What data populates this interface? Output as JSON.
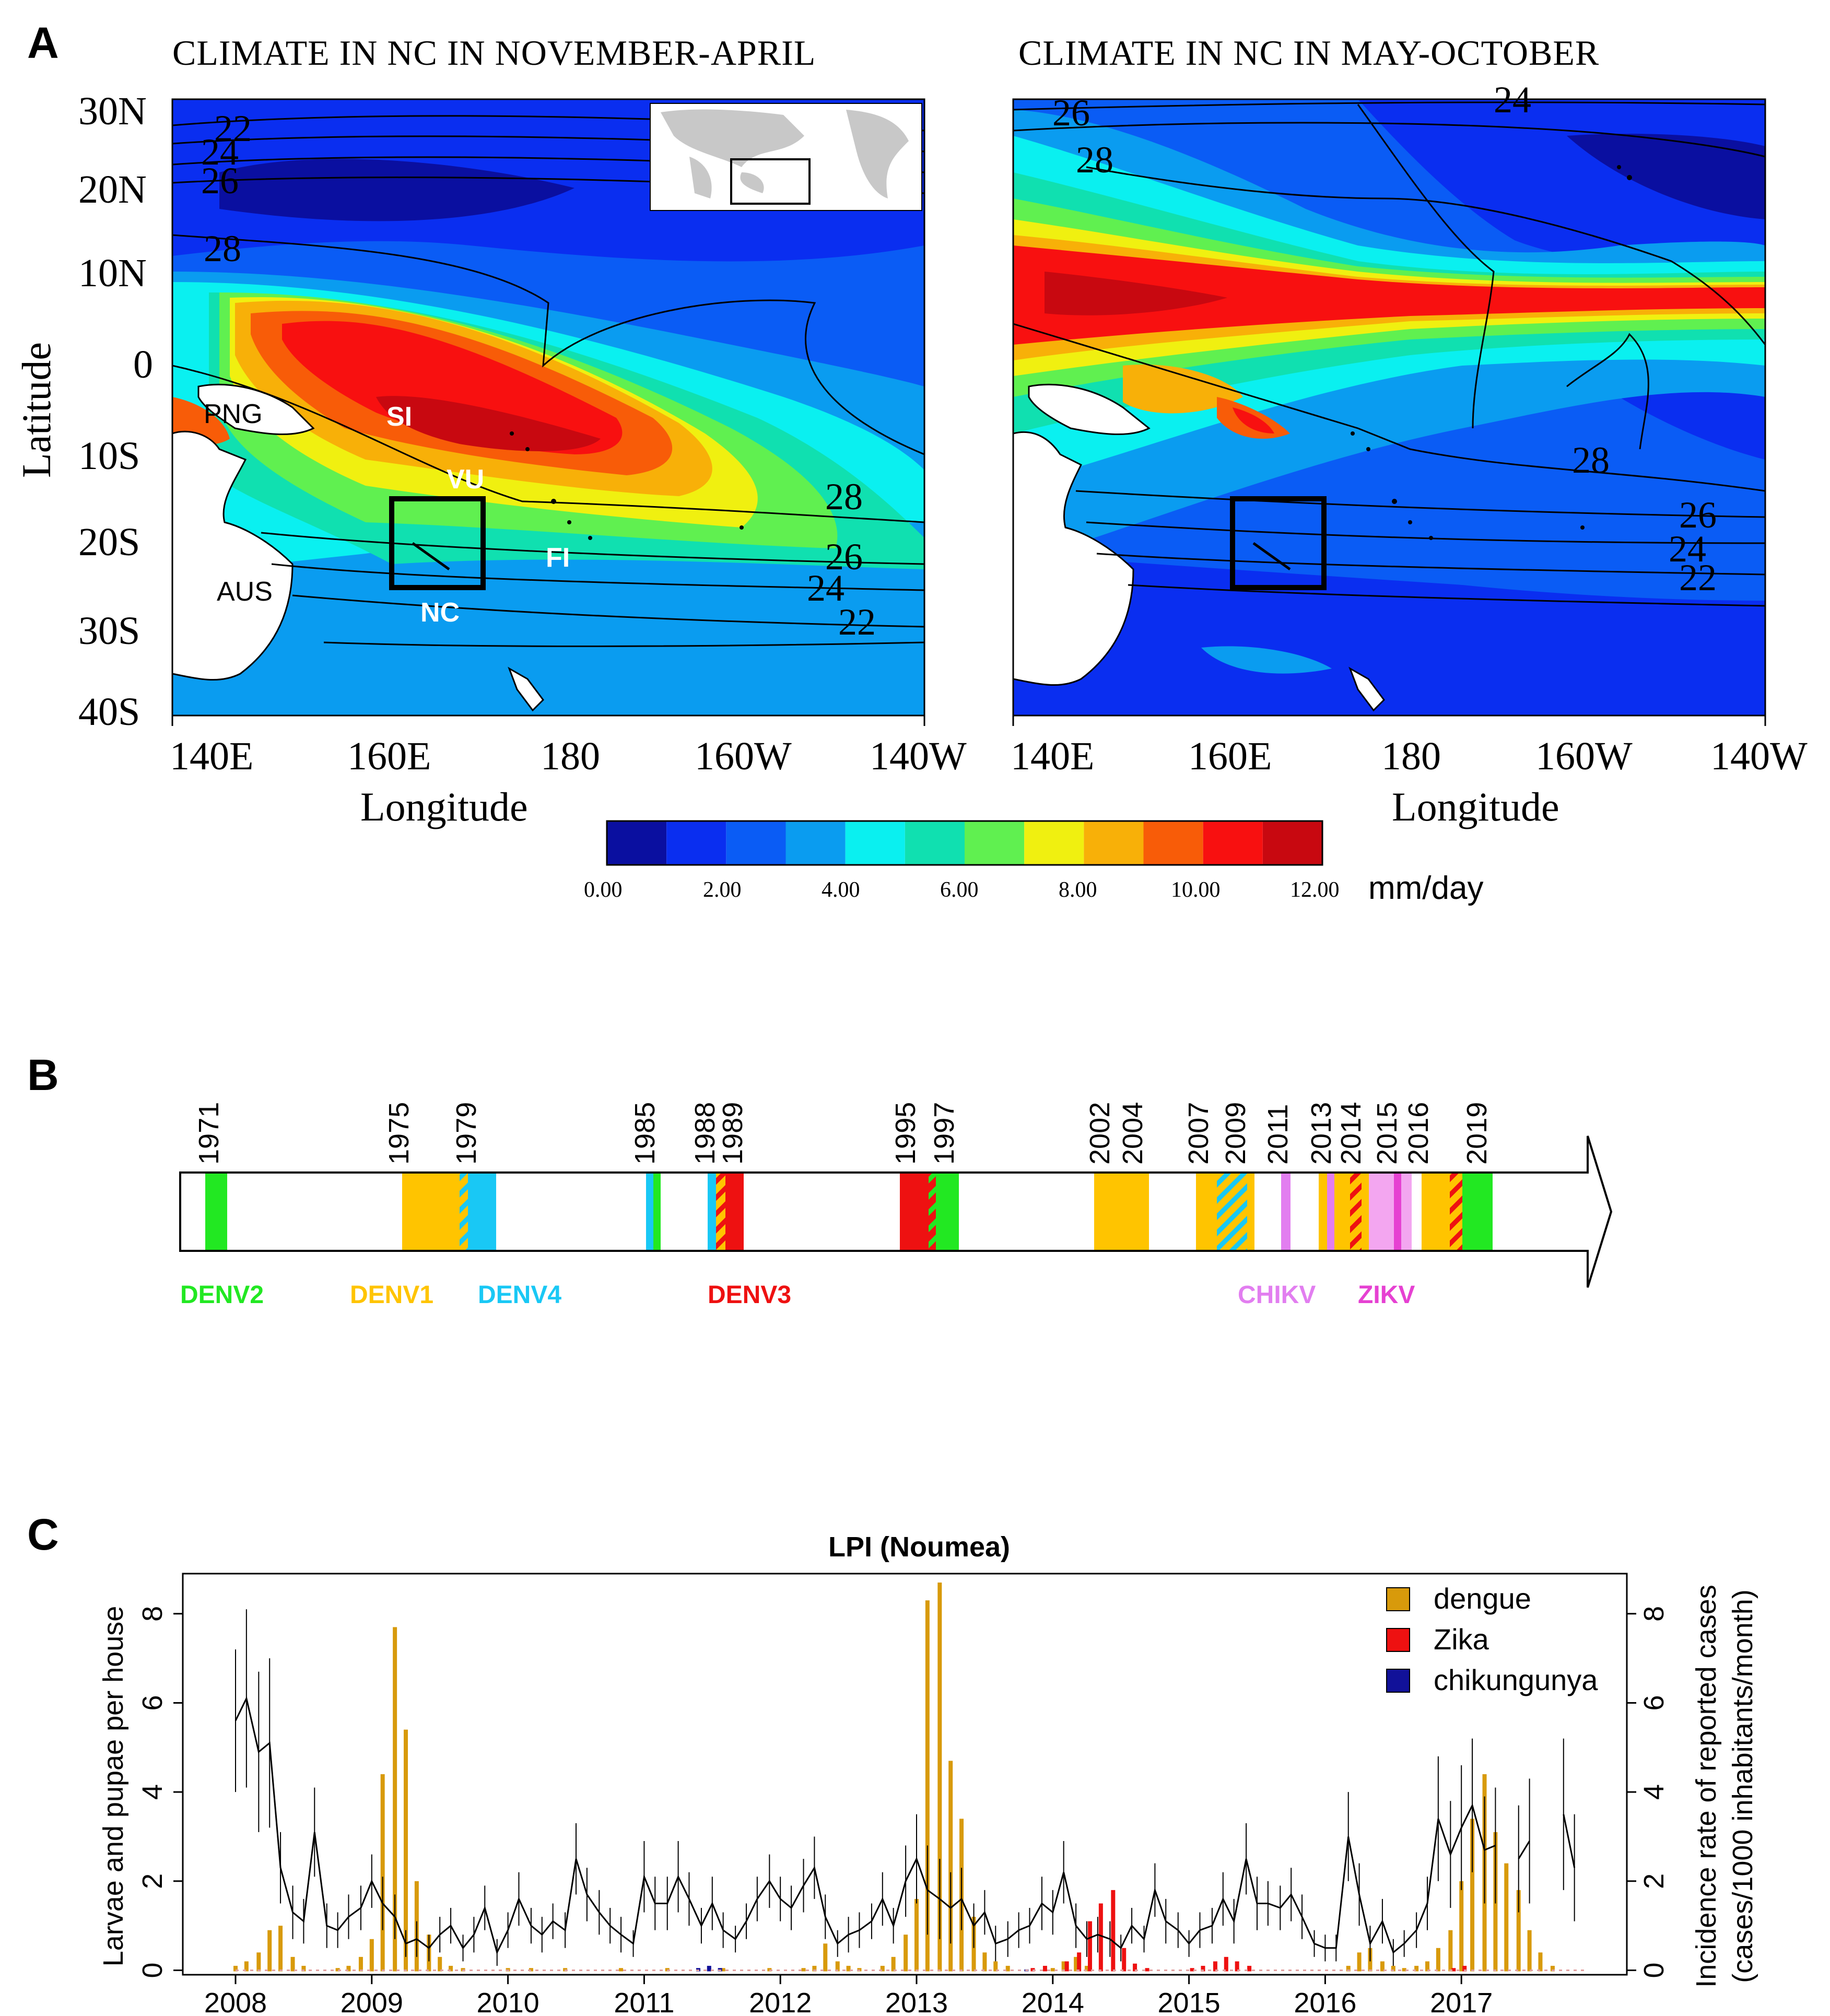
{
  "panels": {
    "a": "A",
    "b": "B",
    "c": "C"
  },
  "panel_a": {
    "left_map": {
      "title": "CLIMATE IN NC IN NOVEMBER-APRIL",
      "region_labels": [
        "PNG",
        "SI",
        "VU",
        "FI",
        "AUS",
        "NC"
      ],
      "sst_contour_labels": [
        "22",
        "24",
        "26",
        "28",
        "28",
        "26",
        "24",
        "22"
      ]
    },
    "right_map": {
      "title": "CLIMATE IN NC IN MAY-OCTOBER",
      "sst_contour_labels": [
        "26",
        "28",
        "24",
        "28",
        "26",
        "24",
        "22"
      ]
    },
    "lat_ticks": [
      "30N",
      "20N",
      "10N",
      "0",
      "10S",
      "20S",
      "30S",
      "40S"
    ],
    "lon_ticks": [
      "140E",
      "160E",
      "180",
      "160W",
      "140W"
    ],
    "xlabel": "Longitude",
    "ylabel": "Latitude",
    "colorbar": {
      "ticks": [
        "0.00",
        "2.00",
        "4.00",
        "6.00",
        "8.00",
        "10.00",
        "12.00"
      ],
      "unit": "mm/day",
      "colors": [
        "#0a0fa0",
        "#0a2ef0",
        "#0a5cf5",
        "#0a9cf0",
        "#0af0f0",
        "#10e0b0",
        "#60f050",
        "#f0f010",
        "#f8b008",
        "#f85c08",
        "#f81010",
        "#c80810"
      ]
    }
  },
  "panel_b": {
    "years": [
      "1971",
      "1975",
      "1979",
      "1985",
      "1988",
      "1989",
      "1995",
      "1997",
      "2002",
      "2004",
      "2007",
      "2009",
      "2011",
      "2013",
      "2014",
      "2015",
      "2016",
      "2019"
    ],
    "legend": [
      {
        "label": "DENV2",
        "color": "#22e822"
      },
      {
        "label": "DENV1",
        "color": "#ffc400"
      },
      {
        "label": "DENV4",
        "color": "#19c8f5"
      },
      {
        "label": "DENV3",
        "color": "#ee1111"
      },
      {
        "label": "CHIKV",
        "color": "#e27ef0"
      },
      {
        "label": "ZIKV",
        "color": "#e641d2"
      }
    ]
  },
  "chart_data": {
    "type": "bar",
    "title": "LPI (Noumea)",
    "ylabel_left": "Larvae and pupae per house",
    "ylabel_right_line1": "Incidence rate of reported cases",
    "ylabel_right_line2": "(cases/1000 inhabitants/month)",
    "xlabel": "",
    "x_ticks": [
      "2008",
      "2009",
      "2010",
      "2011",
      "2012",
      "2013",
      "2014",
      "2015",
      "2016",
      "2017"
    ],
    "y_left_ticks": [
      "0",
      "2",
      "4",
      "6",
      "8"
    ],
    "y_right_ticks": [
      "0",
      "2",
      "4",
      "6",
      "8"
    ],
    "ylim": [
      -0.1,
      8.9
    ],
    "legend": [
      {
        "name": "dengue",
        "color": "#d89a0b"
      },
      {
        "name": "Zika",
        "color": "#ee1111"
      },
      {
        "name": "chikungunya",
        "color": "#111199"
      }
    ],
    "dengue_bars": [
      [
        2008.0,
        0.1
      ],
      [
        2008.08,
        0.2
      ],
      [
        2008.17,
        0.4
      ],
      [
        2008.25,
        0.9
      ],
      [
        2008.33,
        1.0
      ],
      [
        2008.42,
        0.3
      ],
      [
        2008.5,
        0.1
      ],
      [
        2008.75,
        0.05
      ],
      [
        2008.83,
        0.1
      ],
      [
        2008.92,
        0.3
      ],
      [
        2009.0,
        0.7
      ],
      [
        2009.08,
        4.4
      ],
      [
        2009.17,
        7.7
      ],
      [
        2009.25,
        5.4
      ],
      [
        2009.33,
        2.0
      ],
      [
        2009.42,
        0.8
      ],
      [
        2009.5,
        0.3
      ],
      [
        2009.58,
        0.1
      ],
      [
        2009.67,
        0.05
      ],
      [
        2010.0,
        0.05
      ],
      [
        2010.17,
        0.05
      ],
      [
        2010.42,
        0.05
      ],
      [
        2010.83,
        0.05
      ],
      [
        2011.17,
        0.05
      ],
      [
        2011.58,
        0.05
      ],
      [
        2011.92,
        0.05
      ],
      [
        2012.17,
        0.05
      ],
      [
        2012.25,
        0.1
      ],
      [
        2012.33,
        0.6
      ],
      [
        2012.42,
        0.2
      ],
      [
        2012.5,
        0.1
      ],
      [
        2012.58,
        0.05
      ],
      [
        2012.75,
        0.1
      ],
      [
        2012.83,
        0.3
      ],
      [
        2012.92,
        0.8
      ],
      [
        2013.0,
        1.6
      ],
      [
        2013.08,
        8.3
      ],
      [
        2013.17,
        8.7
      ],
      [
        2013.25,
        4.7
      ],
      [
        2013.33,
        3.4
      ],
      [
        2013.42,
        1.2
      ],
      [
        2013.5,
        0.4
      ],
      [
        2013.58,
        0.2
      ],
      [
        2013.67,
        0.1
      ],
      [
        2014.0,
        0.05
      ],
      [
        2014.08,
        0.2
      ],
      [
        2014.17,
        0.3
      ],
      [
        2014.25,
        0.1
      ],
      [
        2016.17,
        0.1
      ],
      [
        2016.25,
        0.4
      ],
      [
        2016.33,
        0.5
      ],
      [
        2016.42,
        0.2
      ],
      [
        2016.5,
        0.1
      ],
      [
        2016.58,
        0.05
      ],
      [
        2016.67,
        0.1
      ],
      [
        2016.75,
        0.2
      ],
      [
        2016.83,
        0.5
      ],
      [
        2016.92,
        0.9
      ],
      [
        2017.0,
        2.0
      ],
      [
        2017.08,
        3.4
      ],
      [
        2017.17,
        4.4
      ],
      [
        2017.25,
        3.1
      ],
      [
        2017.33,
        2.4
      ],
      [
        2017.42,
        1.8
      ],
      [
        2017.5,
        0.9
      ],
      [
        2017.58,
        0.4
      ],
      [
        2017.67,
        0.1
      ]
    ],
    "zika_bars": [
      [
        2013.83,
        0.05
      ],
      [
        2013.92,
        0.1
      ],
      [
        2014.08,
        0.2
      ],
      [
        2014.17,
        0.4
      ],
      [
        2014.25,
        1.1
      ],
      [
        2014.33,
        1.5
      ],
      [
        2014.42,
        1.8
      ],
      [
        2014.5,
        0.5
      ],
      [
        2014.58,
        0.15
      ],
      [
        2014.67,
        0.05
      ],
      [
        2015.0,
        0.05
      ],
      [
        2015.08,
        0.1
      ],
      [
        2015.17,
        0.2
      ],
      [
        2015.25,
        0.3
      ],
      [
        2015.33,
        0.2
      ],
      [
        2015.42,
        0.1
      ],
      [
        2016.92,
        0.05
      ],
      [
        2017.0,
        0.1
      ]
    ],
    "chik_bars": [
      [
        2011.42,
        0.05
      ],
      [
        2011.5,
        0.1
      ],
      [
        2011.58,
        0.05
      ],
      [
        2013.83,
        0.02
      ]
    ],
    "lpi_series": [
      [
        2008.0,
        5.6,
        1.6
      ],
      [
        2008.08,
        6.1,
        2.0
      ],
      [
        2008.17,
        4.9,
        1.8
      ],
      [
        2008.25,
        5.1,
        1.9
      ],
      [
        2008.33,
        2.3,
        0.8
      ],
      [
        2008.42,
        1.3,
        0.6
      ],
      [
        2008.5,
        1.1,
        0.5
      ],
      [
        2008.58,
        3.1,
        1.0
      ],
      [
        2008.67,
        1.0,
        0.5
      ],
      [
        2008.75,
        0.9,
        0.4
      ],
      [
        2008.83,
        1.2,
        0.5
      ],
      [
        2008.92,
        1.4,
        0.5
      ],
      [
        2009.0,
        2.0,
        0.6
      ],
      [
        2009.08,
        1.5,
        0.6
      ],
      [
        2009.17,
        1.2,
        0.5
      ],
      [
        2009.25,
        0.6,
        0.3
      ],
      [
        2009.33,
        0.7,
        0.4
      ],
      [
        2009.42,
        0.5,
        0.3
      ],
      [
        2009.5,
        0.8,
        0.4
      ],
      [
        2009.58,
        1.0,
        0.4
      ],
      [
        2009.67,
        0.5,
        0.3
      ],
      [
        2009.75,
        0.8,
        0.4
      ],
      [
        2009.83,
        1.4,
        0.5
      ],
      [
        2009.92,
        0.4,
        0.3
      ],
      [
        2010.0,
        0.9,
        0.4
      ],
      [
        2010.08,
        1.6,
        0.6
      ],
      [
        2010.17,
        1.0,
        0.4
      ],
      [
        2010.25,
        0.8,
        0.4
      ],
      [
        2010.33,
        1.1,
        0.4
      ],
      [
        2010.42,
        0.9,
        0.4
      ],
      [
        2010.5,
        2.5,
        0.8
      ],
      [
        2010.58,
        1.7,
        0.6
      ],
      [
        2010.67,
        1.3,
        0.5
      ],
      [
        2010.75,
        1.0,
        0.4
      ],
      [
        2010.83,
        0.8,
        0.4
      ],
      [
        2010.92,
        0.6,
        0.3
      ],
      [
        2011.0,
        2.1,
        0.8
      ],
      [
        2011.08,
        1.5,
        0.6
      ],
      [
        2011.17,
        1.5,
        0.6
      ],
      [
        2011.25,
        2.1,
        0.8
      ],
      [
        2011.33,
        1.6,
        0.6
      ],
      [
        2011.42,
        1.0,
        0.4
      ],
      [
        2011.5,
        1.5,
        0.6
      ],
      [
        2011.58,
        0.9,
        0.4
      ],
      [
        2011.67,
        0.7,
        0.3
      ],
      [
        2011.75,
        1.1,
        0.4
      ],
      [
        2011.83,
        1.6,
        0.5
      ],
      [
        2011.92,
        2.0,
        0.6
      ],
      [
        2012.0,
        1.6,
        0.5
      ],
      [
        2012.08,
        1.4,
        0.5
      ],
      [
        2012.17,
        1.9,
        0.6
      ],
      [
        2012.25,
        2.3,
        0.7
      ],
      [
        2012.33,
        1.2,
        0.5
      ],
      [
        2012.42,
        0.6,
        0.3
      ],
      [
        2012.5,
        0.8,
        0.4
      ],
      [
        2012.58,
        0.9,
        0.4
      ],
      [
        2012.67,
        1.1,
        0.4
      ],
      [
        2012.75,
        1.6,
        0.6
      ],
      [
        2012.83,
        1.0,
        0.4
      ],
      [
        2012.92,
        2.0,
        0.8
      ],
      [
        2013.0,
        2.5,
        1.0
      ],
      [
        2013.08,
        1.8,
        1.0
      ],
      [
        2013.17,
        1.6,
        0.9
      ],
      [
        2013.25,
        1.4,
        0.8
      ],
      [
        2013.33,
        1.6,
        0.7
      ],
      [
        2013.42,
        1.0,
        0.5
      ],
      [
        2013.5,
        1.3,
        0.5
      ],
      [
        2013.58,
        0.6,
        0.4
      ],
      [
        2013.67,
        0.7,
        0.4
      ],
      [
        2013.75,
        0.9,
        0.4
      ],
      [
        2013.83,
        1.0,
        0.4
      ],
      [
        2013.92,
        1.5,
        0.6
      ],
      [
        2014.0,
        1.3,
        0.5
      ],
      [
        2014.08,
        2.2,
        0.7
      ],
      [
        2014.17,
        1.0,
        0.5
      ],
      [
        2014.25,
        0.7,
        0.4
      ],
      [
        2014.33,
        0.8,
        0.4
      ],
      [
        2014.42,
        0.7,
        0.4
      ],
      [
        2014.5,
        0.5,
        0.3
      ],
      [
        2014.58,
        1.0,
        0.4
      ],
      [
        2014.67,
        0.7,
        0.3
      ],
      [
        2014.75,
        1.8,
        0.6
      ],
      [
        2014.83,
        1.1,
        0.5
      ],
      [
        2014.92,
        0.9,
        0.4
      ],
      [
        2015.0,
        0.6,
        0.3
      ],
      [
        2015.08,
        0.9,
        0.4
      ],
      [
        2015.17,
        1.0,
        0.4
      ],
      [
        2015.25,
        1.6,
        0.6
      ],
      [
        2015.33,
        1.1,
        0.5
      ],
      [
        2015.42,
        2.5,
        0.8
      ],
      [
        2015.5,
        1.5,
        0.6
      ],
      [
        2015.58,
        1.5,
        0.5
      ],
      [
        2015.67,
        1.4,
        0.5
      ],
      [
        2015.75,
        1.7,
        0.6
      ],
      [
        2015.83,
        1.2,
        0.5
      ],
      [
        2015.92,
        0.6,
        0.3
      ],
      [
        2016.0,
        0.5,
        0.3
      ],
      [
        2016.08,
        0.5,
        0.3
      ],
      [
        2016.17,
        3.0,
        1.0
      ],
      [
        2016.25,
        1.7,
        0.7
      ],
      [
        2016.33,
        0.6,
        0.4
      ],
      [
        2016.42,
        1.1,
        0.5
      ],
      [
        2016.5,
        0.4,
        0.3
      ],
      [
        2016.58,
        0.6,
        0.3
      ],
      [
        2016.67,
        0.9,
        0.4
      ],
      [
        2016.75,
        1.5,
        0.6
      ],
      [
        2016.83,
        3.4,
        1.4
      ],
      [
        2016.92,
        2.6,
        1.2
      ],
      [
        2017.0,
        3.2,
        1.4
      ],
      [
        2017.08,
        3.7,
        1.5
      ],
      [
        2017.17,
        2.7,
        1.2
      ],
      [
        2017.25,
        2.8,
        1.3
      ],
      [
        2017.42,
        2.5,
        1.2
      ],
      [
        2017.5,
        2.9,
        1.4
      ],
      [
        2017.75,
        3.5,
        1.7
      ],
      [
        2017.83,
        2.3,
        1.2
      ]
    ]
  }
}
